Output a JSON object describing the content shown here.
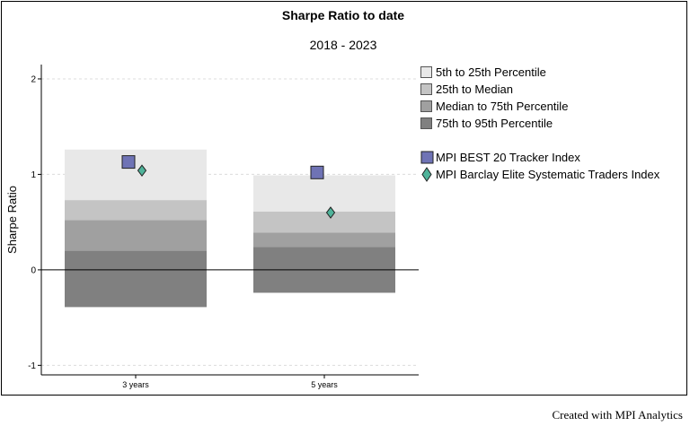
{
  "footer": "Created with MPI Analytics",
  "chart_data": {
    "type": "bar",
    "title": "Sharpe Ratio to date",
    "subtitle": "2018 - 2023",
    "xlabel": "",
    "ylabel": "Sharpe Ratio",
    "ylim": [
      -1.1,
      2.15
    ],
    "yticks": [
      -1,
      0,
      1,
      2
    ],
    "grid": true,
    "legend_position": "right",
    "categories": [
      "3 years",
      "5 years"
    ],
    "percentile_bands": [
      {
        "name": "5th to 25th Percentile",
        "color": "#e8e8e8",
        "bottom": [
          0.73,
          0.61
        ],
        "top": [
          1.26,
          0.99
        ]
      },
      {
        "name": "25th to Median",
        "color": "#c4c4c4",
        "bottom": [
          0.52,
          0.39
        ],
        "top": [
          0.73,
          0.61
        ]
      },
      {
        "name": "Median to 75th Percentile",
        "color": "#a0a0a0",
        "bottom": [
          0.2,
          0.24
        ],
        "top": [
          0.52,
          0.39
        ]
      },
      {
        "name": "75th to 95th Percentile",
        "color": "#808080",
        "bottom": [
          -0.39,
          -0.24
        ],
        "top": [
          0.2,
          0.24
        ]
      }
    ],
    "series": [
      {
        "name": "MPI BEST 20 Tracker Index",
        "marker": "square",
        "color": "#6f73b5",
        "values": [
          1.13,
          1.02
        ]
      },
      {
        "name": "MPI Barclay Elite Systematic Traders Index",
        "marker": "diamond",
        "color": "#4fb39a",
        "values": [
          1.04,
          0.6
        ]
      }
    ]
  }
}
